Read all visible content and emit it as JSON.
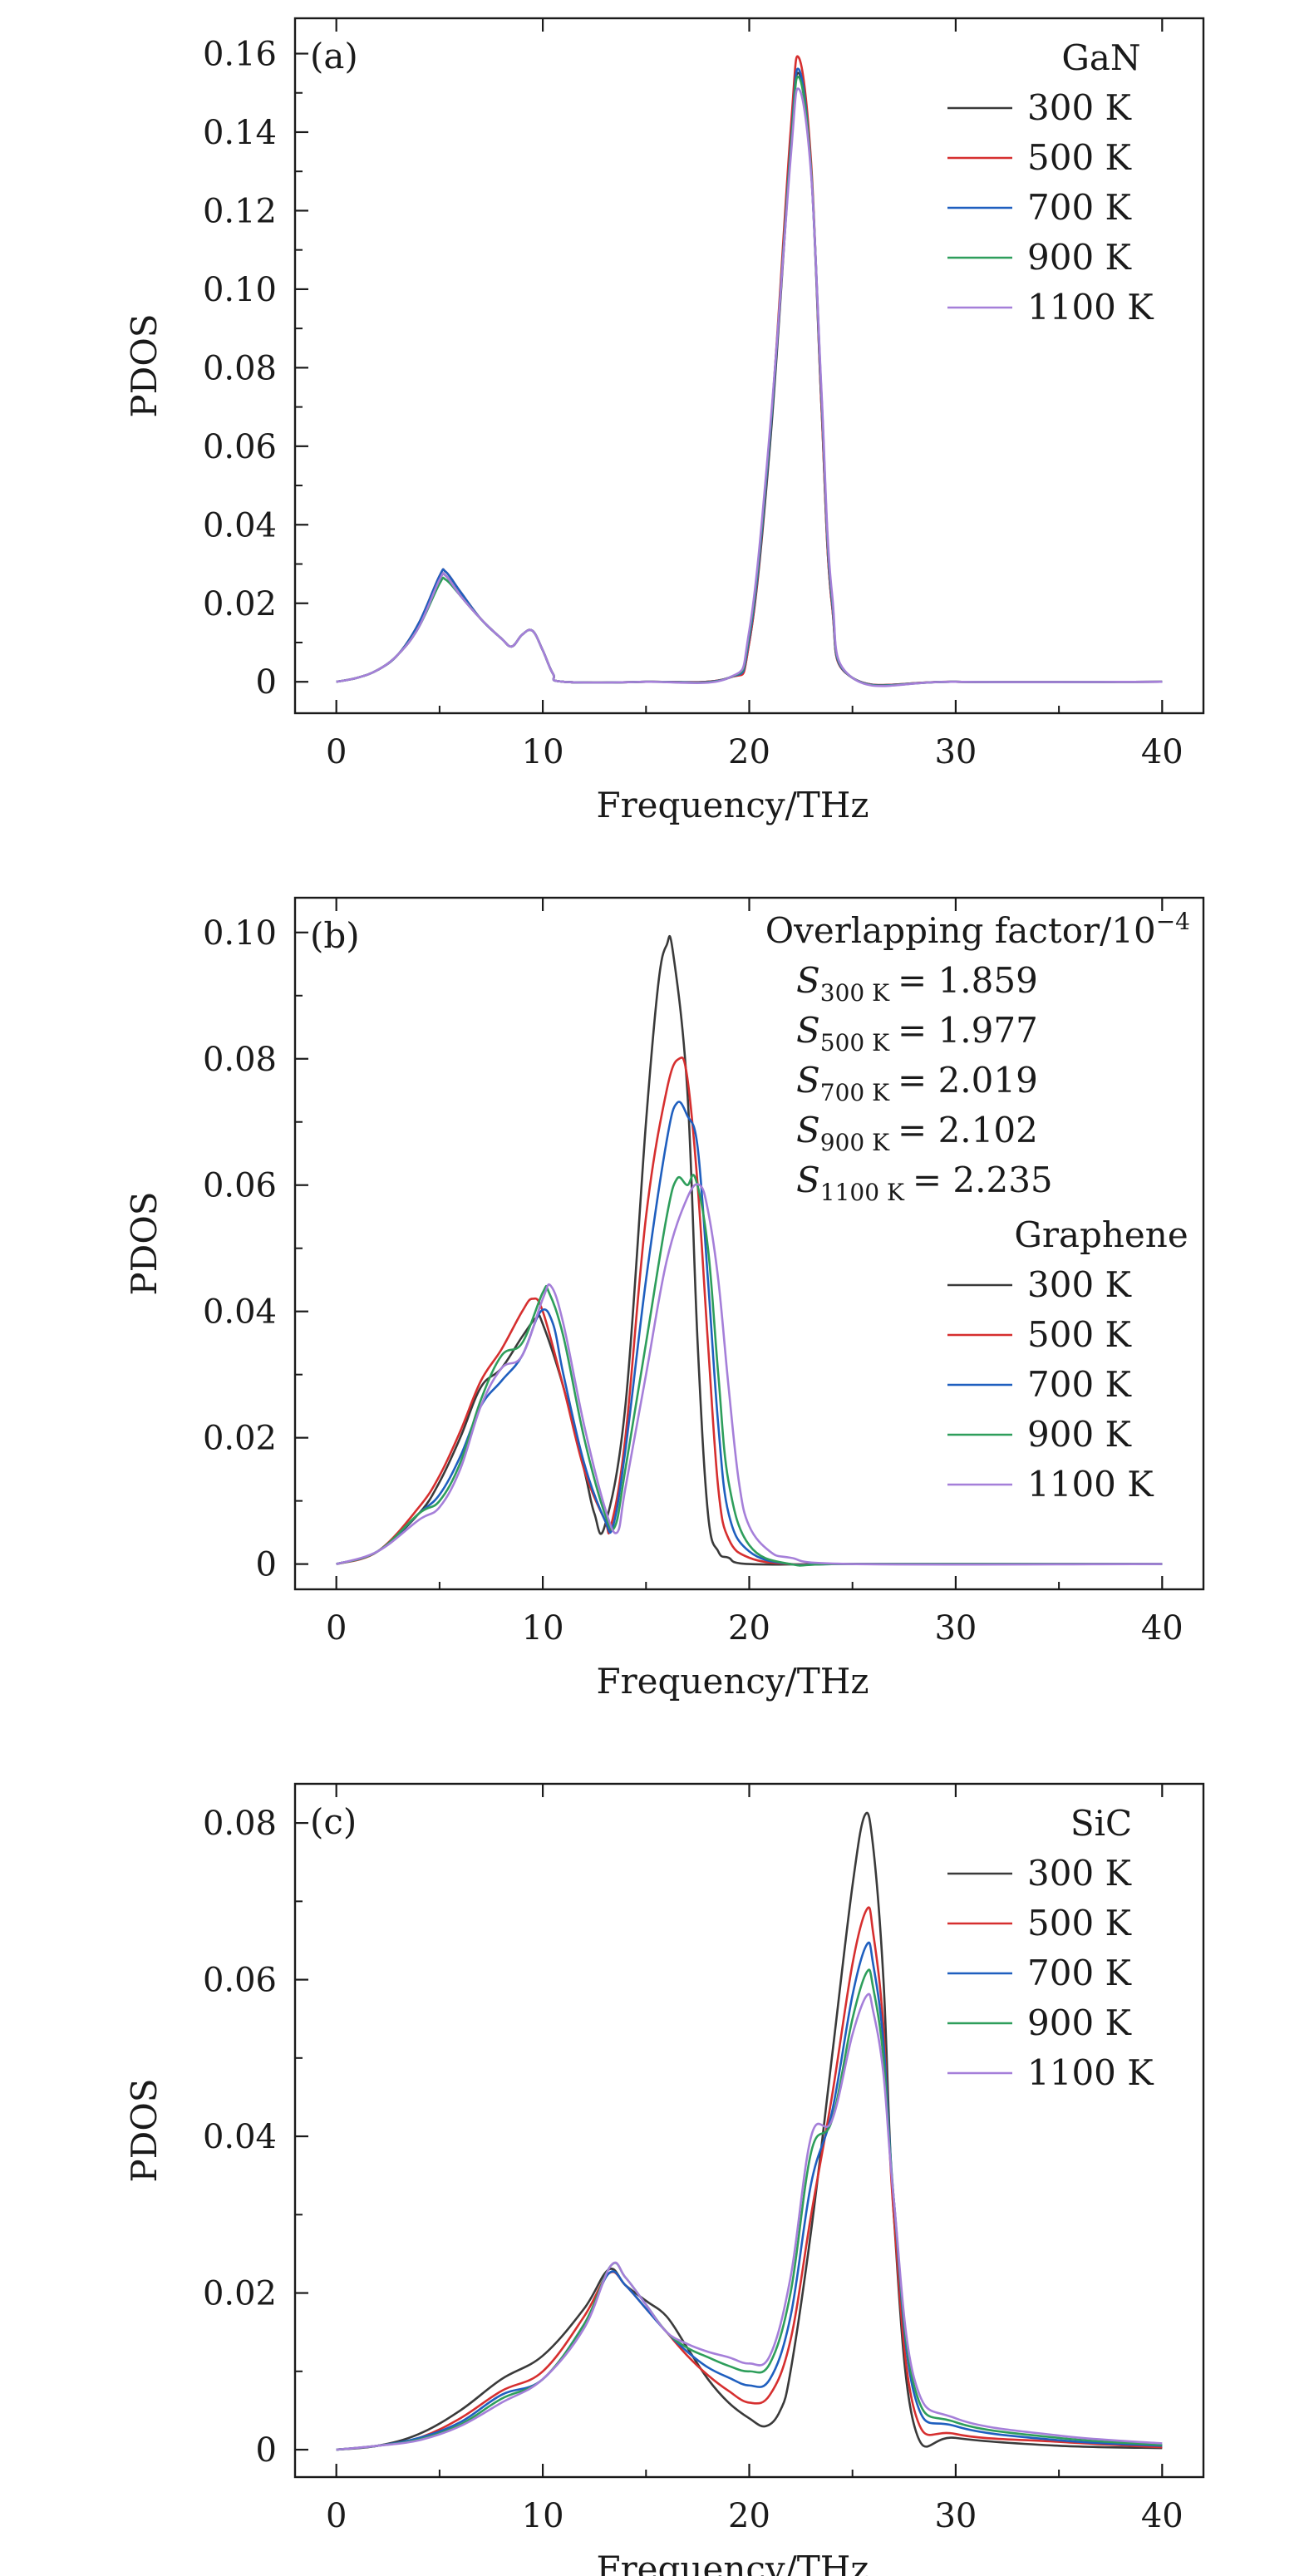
{
  "colors": {
    "300 K": "#3a3a3a",
    "500 K": "#d62f2f",
    "700 K": "#1f5fbf",
    "900 K": "#2e9e5b",
    "1100 K": "#a57fd9"
  },
  "chart_data": [
    {
      "type": "line",
      "tag": "(a)",
      "xlabel": "Frequency/THz",
      "ylabel": "PDOS",
      "xlim": [
        -2,
        42
      ],
      "ylim": [
        -0.008,
        0.169
      ],
      "xticks": [
        0,
        10,
        20,
        30,
        40
      ],
      "xtick_labels": [
        "0",
        "10",
        "20",
        "30",
        "40"
      ],
      "yticks": [
        0,
        0.02,
        0.04,
        0.06,
        0.08,
        0.1,
        0.12,
        0.14,
        0.16
      ],
      "ytick_labels": [
        "0",
        "0.02",
        "0.04",
        "0.06",
        "0.08",
        "0.10",
        "0.12",
        "0.14",
        "0.16"
      ],
      "legend_title": "GaN",
      "series": [
        {
          "name": "300 K",
          "x": [
            0,
            1,
            2,
            3,
            4,
            5,
            5.3,
            6,
            7,
            8,
            8.5,
            9,
            9.5,
            10,
            10.5,
            11,
            15,
            19,
            20,
            21,
            22,
            22.4,
            23,
            23.5,
            24,
            25,
            30,
            40
          ],
          "y": [
            0,
            0.001,
            0.003,
            0.007,
            0.014,
            0.026,
            0.027,
            0.022,
            0.016,
            0.011,
            0.009,
            0.012,
            0.013,
            0.008,
            0.002,
            0,
            0,
            0.001,
            0.01,
            0.06,
            0.135,
            0.155,
            0.13,
            0.07,
            0.02,
            0.001,
            0,
            0
          ]
        },
        {
          "name": "500 K",
          "x": [
            0,
            1,
            2,
            3,
            4,
            5,
            5.3,
            6,
            7,
            8,
            8.5,
            9,
            9.5,
            10,
            10.5,
            11,
            15,
            19,
            20,
            21,
            22,
            22.4,
            23,
            23.5,
            24,
            25,
            30,
            40
          ],
          "y": [
            0,
            0.001,
            0.003,
            0.007,
            0.015,
            0.027,
            0.028,
            0.023,
            0.016,
            0.011,
            0.009,
            0.012,
            0.013,
            0.008,
            0.002,
            0,
            0,
            0.001,
            0.01,
            0.062,
            0.14,
            0.159,
            0.132,
            0.07,
            0.02,
            0.001,
            0,
            0
          ]
        },
        {
          "name": "700 K",
          "x": [
            0,
            1,
            2,
            3,
            4,
            5,
            5.3,
            6,
            7,
            8,
            8.5,
            9,
            9.5,
            10,
            10.5,
            11,
            15,
            19,
            20,
            21,
            22,
            22.4,
            23,
            23.5,
            24,
            25,
            30,
            40
          ],
          "y": [
            0,
            0.001,
            0.003,
            0.007,
            0.015,
            0.027,
            0.028,
            0.023,
            0.016,
            0.011,
            0.009,
            0.012,
            0.013,
            0.008,
            0.002,
            0,
            0,
            0.001,
            0.011,
            0.062,
            0.136,
            0.156,
            0.13,
            0.072,
            0.021,
            0.001,
            0,
            0
          ]
        },
        {
          "name": "900 K",
          "x": [
            0,
            1,
            2,
            3,
            4,
            5,
            5.3,
            6,
            7,
            8,
            8.5,
            9,
            9.5,
            10,
            10.5,
            11,
            15,
            19,
            20,
            21,
            22,
            22.4,
            23,
            23.5,
            24,
            25,
            30,
            40
          ],
          "y": [
            0,
            0.001,
            0.003,
            0.007,
            0.014,
            0.025,
            0.026,
            0.022,
            0.016,
            0.011,
            0.009,
            0.012,
            0.013,
            0.008,
            0.002,
            0,
            0,
            0.001,
            0.012,
            0.063,
            0.135,
            0.154,
            0.13,
            0.073,
            0.022,
            0.001,
            0,
            0
          ]
        },
        {
          "name": "1100 K",
          "x": [
            0,
            1,
            2,
            3,
            4,
            5,
            5.3,
            6,
            7,
            8,
            8.5,
            9,
            9.5,
            10,
            10.5,
            11,
            15,
            19,
            20,
            21,
            22,
            22.4,
            23,
            23.5,
            24,
            25,
            30,
            40
          ],
          "y": [
            0,
            0.001,
            0.003,
            0.007,
            0.014,
            0.026,
            0.027,
            0.022,
            0.016,
            0.011,
            0.009,
            0.012,
            0.013,
            0.008,
            0.002,
            0,
            0,
            0.001,
            0.013,
            0.064,
            0.133,
            0.151,
            0.129,
            0.074,
            0.023,
            0.001,
            0,
            0
          ]
        }
      ]
    },
    {
      "type": "line",
      "tag": "(b)",
      "xlabel": "Frequency/THz",
      "ylabel": "PDOS",
      "xlim": [
        -2,
        42
      ],
      "ylim": [
        -0.004,
        0.1055
      ],
      "xticks": [
        0,
        10,
        20,
        30,
        40
      ],
      "xtick_labels": [
        "0",
        "10",
        "20",
        "30",
        "40"
      ],
      "yticks": [
        0,
        0.02,
        0.04,
        0.06,
        0.08,
        0.1
      ],
      "ytick_labels": [
        "0",
        "0.02",
        "0.04",
        "0.06",
        "0.08",
        "0.10"
      ],
      "legend_title": "Graphene",
      "annotation_title": "Overlapping factor/10",
      "annotation_title_exp": "−4",
      "overlap": [
        {
          "sub": "300 K",
          "val": "= 1.859"
        },
        {
          "sub": "500 K",
          "val": "= 1.977"
        },
        {
          "sub": "700 K",
          "val": "= 2.019"
        },
        {
          "sub": "900 K",
          "val": "= 2.102"
        },
        {
          "sub": "1100 K",
          "val": "= 2.235"
        }
      ],
      "series": [
        {
          "name": "300 K",
          "x": [
            0,
            2,
            4,
            5,
            6,
            7,
            8,
            9,
            9.7,
            10,
            11,
            12,
            12.5,
            13,
            14,
            15,
            15.6,
            16,
            16.3,
            17,
            17.5,
            18,
            18.5,
            19,
            20,
            25,
            40
          ],
          "y": [
            0,
            0.002,
            0.008,
            0.013,
            0.02,
            0.028,
            0.031,
            0.036,
            0.039,
            0.038,
            0.028,
            0.015,
            0.008,
            0.006,
            0.025,
            0.07,
            0.092,
            0.098,
            0.097,
            0.075,
            0.035,
            0.008,
            0.002,
            0.001,
            0,
            0,
            0
          ]
        },
        {
          "name": "500 K",
          "x": [
            0,
            2,
            4,
            5,
            6,
            7,
            8,
            9,
            9.5,
            10,
            11,
            12,
            13,
            13.3,
            14,
            15,
            16,
            16.6,
            17,
            17.5,
            18,
            18.5,
            19,
            20,
            22,
            25,
            40
          ],
          "y": [
            0,
            0.002,
            0.009,
            0.014,
            0.021,
            0.029,
            0.034,
            0.04,
            0.042,
            0.04,
            0.028,
            0.015,
            0.007,
            0.006,
            0.02,
            0.055,
            0.075,
            0.08,
            0.077,
            0.06,
            0.035,
            0.012,
            0.004,
            0.001,
            0,
            0,
            0
          ]
        },
        {
          "name": "700 K",
          "x": [
            0,
            2,
            4,
            5,
            6,
            7,
            8,
            9,
            9.9,
            10.5,
            11,
            12,
            13,
            13.4,
            14,
            15,
            16,
            16.5,
            17,
            17.5,
            18,
            18.5,
            19,
            20,
            22,
            25,
            40
          ],
          "y": [
            0,
            0.002,
            0.008,
            0.011,
            0.017,
            0.025,
            0.029,
            0.033,
            0.04,
            0.038,
            0.03,
            0.016,
            0.007,
            0.006,
            0.018,
            0.045,
            0.067,
            0.073,
            0.071,
            0.066,
            0.045,
            0.022,
            0.008,
            0.002,
            0,
            0,
            0
          ]
        },
        {
          "name": "900 K",
          "x": [
            0,
            2,
            4,
            5,
            6,
            7,
            8,
            9,
            10,
            10.3,
            11,
            12,
            13,
            13.5,
            14,
            15,
            16,
            16.5,
            17,
            17.4,
            18,
            18.5,
            19,
            20,
            22,
            25,
            40
          ],
          "y": [
            0,
            0.002,
            0.008,
            0.01,
            0.016,
            0.026,
            0.033,
            0.035,
            0.043,
            0.043,
            0.036,
            0.02,
            0.008,
            0.006,
            0.015,
            0.035,
            0.055,
            0.061,
            0.06,
            0.061,
            0.05,
            0.03,
            0.013,
            0.003,
            0,
            0,
            0
          ]
        },
        {
          "name": "1100 K",
          "x": [
            0,
            2,
            4,
            5,
            6,
            7,
            8,
            9,
            10,
            10.4,
            11,
            12,
            13,
            13.6,
            14,
            15,
            16,
            17,
            17.6,
            18,
            18.5,
            19,
            19.5,
            20,
            21,
            22,
            25,
            40
          ],
          "y": [
            0,
            0.002,
            0.007,
            0.009,
            0.015,
            0.025,
            0.031,
            0.033,
            0.042,
            0.044,
            0.038,
            0.022,
            0.009,
            0.005,
            0.012,
            0.03,
            0.048,
            0.058,
            0.06,
            0.056,
            0.045,
            0.028,
            0.013,
            0.006,
            0.002,
            0.001,
            0,
            0
          ]
        }
      ]
    },
    {
      "type": "line",
      "tag": "(c)",
      "xlabel": "Frequency/THz",
      "ylabel": "PDOS",
      "xlim": [
        -2,
        42
      ],
      "ylim": [
        -0.0035,
        0.085
      ],
      "xticks": [
        0,
        10,
        20,
        30,
        40
      ],
      "xtick_labels": [
        "0",
        "10",
        "20",
        "30",
        "40"
      ],
      "yticks": [
        0,
        0.02,
        0.04,
        0.06,
        0.08
      ],
      "ytick_labels": [
        "0",
        "0.02",
        "0.04",
        "0.06",
        "0.08"
      ],
      "legend_title": "SiC",
      "series": [
        {
          "name": "300 K",
          "x": [
            0,
            2,
            4,
            6,
            8,
            10,
            12,
            13.2,
            14,
            15,
            16,
            17,
            18,
            19,
            20,
            20.8,
            21.5,
            22,
            23,
            24,
            25,
            25.6,
            26,
            26.5,
            27,
            28,
            30,
            35,
            40
          ],
          "y": [
            0,
            0.0005,
            0.002,
            0.005,
            0.009,
            0.012,
            0.018,
            0.023,
            0.021,
            0.019,
            0.017,
            0.013,
            0.009,
            0.006,
            0.004,
            0.003,
            0.005,
            0.01,
            0.028,
            0.05,
            0.072,
            0.081,
            0.077,
            0.06,
            0.03,
            0.003,
            0.0015,
            0.0005,
            0.0002
          ]
        },
        {
          "name": "500 K",
          "x": [
            0,
            2,
            4,
            6,
            8,
            10,
            12,
            13.2,
            14,
            15,
            16,
            17,
            18,
            19,
            20,
            21,
            22,
            23,
            24,
            25,
            25.7,
            26,
            26.5,
            27,
            28,
            30,
            35,
            40
          ],
          "y": [
            0,
            0.0005,
            0.0015,
            0.004,
            0.0075,
            0.01,
            0.017,
            0.0225,
            0.021,
            0.018,
            0.015,
            0.012,
            0.0095,
            0.0075,
            0.006,
            0.007,
            0.014,
            0.03,
            0.045,
            0.062,
            0.069,
            0.066,
            0.054,
            0.03,
            0.005,
            0.002,
            0.001,
            0.0003
          ]
        },
        {
          "name": "700 K",
          "x": [
            0,
            2,
            4,
            6,
            8,
            10,
            12,
            13.2,
            14,
            15,
            16,
            17,
            18,
            19,
            20,
            21,
            22,
            23,
            24,
            25,
            25.7,
            26,
            26.5,
            27,
            28,
            30,
            35,
            40
          ],
          "y": [
            0,
            0.0005,
            0.0015,
            0.0035,
            0.007,
            0.009,
            0.016,
            0.0225,
            0.021,
            0.018,
            0.015,
            0.0125,
            0.0105,
            0.0092,
            0.0082,
            0.009,
            0.017,
            0.034,
            0.043,
            0.058,
            0.0645,
            0.062,
            0.052,
            0.032,
            0.007,
            0.003,
            0.0012,
            0.0005
          ]
        },
        {
          "name": "900 K",
          "x": [
            0,
            2,
            4,
            6,
            8,
            10,
            12,
            13.3,
            14,
            15,
            16,
            17,
            18,
            19,
            20,
            21,
            22,
            23,
            24,
            25,
            25.7,
            26,
            26.5,
            27,
            28,
            30,
            35,
            40
          ],
          "y": [
            0,
            0.0005,
            0.0013,
            0.0032,
            0.0065,
            0.009,
            0.016,
            0.0235,
            0.022,
            0.0185,
            0.015,
            0.013,
            0.0118,
            0.0107,
            0.01,
            0.011,
            0.02,
            0.038,
            0.042,
            0.055,
            0.061,
            0.059,
            0.05,
            0.032,
            0.008,
            0.0035,
            0.0015,
            0.0006
          ]
        },
        {
          "name": "1100 K",
          "x": [
            0,
            2,
            4,
            6,
            8,
            10,
            12,
            13.3,
            14,
            15,
            16,
            17,
            18,
            19,
            20,
            21,
            22,
            23,
            24,
            25,
            25.7,
            26,
            26.5,
            27,
            28,
            30,
            35,
            40
          ],
          "y": [
            0,
            0.0005,
            0.0012,
            0.003,
            0.006,
            0.009,
            0.0155,
            0.0235,
            0.022,
            0.0185,
            0.015,
            0.0135,
            0.0125,
            0.0118,
            0.011,
            0.012,
            0.022,
            0.04,
            0.042,
            0.053,
            0.058,
            0.056,
            0.048,
            0.032,
            0.009,
            0.004,
            0.0018,
            0.0008
          ]
        }
      ]
    }
  ]
}
